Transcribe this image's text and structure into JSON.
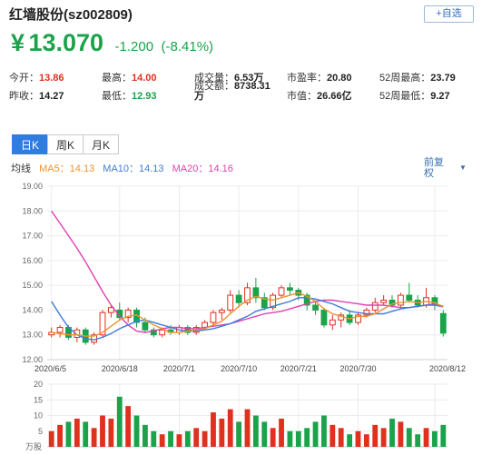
{
  "header": {
    "title": "红墙股份(sz002809)",
    "add_button": "+自选"
  },
  "price": {
    "currency": "¥",
    "value": "13.070",
    "change": "-1.200",
    "change_pct": "(-8.41%)"
  },
  "quote": {
    "open_label": "今开：",
    "open": "13.86",
    "prev_close_label": "昨收：",
    "prev_close": "14.27",
    "high_label": "最高：",
    "high": "14.00",
    "low_label": "最低：",
    "low": "12.93",
    "volume_label": "成交量：",
    "volume": "6.53万",
    "turnover_label": "成交额：",
    "turnover": "8738.31",
    "turnover_unit": "万",
    "pe_label": "市盈率：",
    "pe": "20.80",
    "mcap_label": "市值：",
    "mcap": "26.66亿",
    "w52_high_label": "52周最高：",
    "w52_high": "23.79",
    "w52_low_label": "52周最低：",
    "w52_low": "9.27"
  },
  "tabs": [
    "日K",
    "周K",
    "月K"
  ],
  "ma": {
    "label": "均线",
    "ma5": "MA5：14.13",
    "ma10": "MA10：14.13",
    "ma20": "MA20：14.16",
    "adjust": "前复权"
  },
  "colors": {
    "up": "#e0301e",
    "down": "#1aa34a",
    "ma5": "#f0922e",
    "ma10": "#3e7bd9",
    "ma20": "#e040b0"
  },
  "chart_data": {
    "type": "candlestick",
    "price_ylim": [
      12,
      19
    ],
    "price_ticks": [
      "19.00",
      "18.00",
      "17.00",
      "16.00",
      "15.00",
      "14.00",
      "13.00",
      "12.00"
    ],
    "x_ticks": [
      {
        "label": "2020/6/5",
        "index": 0
      },
      {
        "label": "2020/6/18",
        "index": 8
      },
      {
        "label": "2020/7/1",
        "index": 15
      },
      {
        "label": "2020/7/10",
        "index": 22
      },
      {
        "label": "2020/7/21",
        "index": 29
      },
      {
        "label": "2020/7/30",
        "index": 36
      },
      {
        "label": "2020/8/12",
        "index": 45
      }
    ],
    "volume_ylim": [
      0,
      20
    ],
    "volume_ticks": [
      "20",
      "15",
      "10",
      "5"
    ],
    "volume_unit": "万股",
    "candles": [
      {
        "o": 13.0,
        "c": 13.1,
        "h": 13.3,
        "l": 12.9,
        "v": 5
      },
      {
        "o": 13.1,
        "c": 13.3,
        "h": 13.4,
        "l": 12.9,
        "v": 7
      },
      {
        "o": 13.3,
        "c": 12.9,
        "h": 13.4,
        "l": 12.8,
        "v": 8
      },
      {
        "o": 12.9,
        "c": 13.2,
        "h": 13.3,
        "l": 12.7,
        "v": 9
      },
      {
        "o": 13.2,
        "c": 12.7,
        "h": 13.3,
        "l": 12.6,
        "v": 8
      },
      {
        "o": 12.7,
        "c": 13.0,
        "h": 13.1,
        "l": 12.6,
        "v": 6
      },
      {
        "o": 13.0,
        "c": 13.9,
        "h": 14.0,
        "l": 12.9,
        "v": 10
      },
      {
        "o": 13.9,
        "c": 14.1,
        "h": 14.2,
        "l": 13.7,
        "v": 9
      },
      {
        "o": 14.0,
        "c": 13.7,
        "h": 14.3,
        "l": 13.6,
        "v": 16
      },
      {
        "o": 13.7,
        "c": 14.0,
        "h": 14.1,
        "l": 13.5,
        "v": 13
      },
      {
        "o": 14.0,
        "c": 13.5,
        "h": 14.1,
        "l": 13.3,
        "v": 10
      },
      {
        "o": 13.5,
        "c": 13.2,
        "h": 13.7,
        "l": 13.1,
        "v": 7
      },
      {
        "o": 13.2,
        "c": 13.0,
        "h": 13.3,
        "l": 12.9,
        "v": 5
      },
      {
        "o": 13.0,
        "c": 13.2,
        "h": 13.3,
        "l": 12.9,
        "v": 4
      },
      {
        "o": 13.2,
        "c": 13.1,
        "h": 13.4,
        "l": 13.0,
        "v": 5
      },
      {
        "o": 13.1,
        "c": 13.3,
        "h": 13.4,
        "l": 13.0,
        "v": 4
      },
      {
        "o": 13.3,
        "c": 13.1,
        "h": 13.4,
        "l": 13.0,
        "v": 5
      },
      {
        "o": 13.1,
        "c": 13.3,
        "h": 13.4,
        "l": 13.0,
        "v": 6
      },
      {
        "o": 13.3,
        "c": 13.5,
        "h": 13.6,
        "l": 13.2,
        "v": 5
      },
      {
        "o": 13.5,
        "c": 13.9,
        "h": 14.0,
        "l": 13.4,
        "v": 11
      },
      {
        "o": 13.9,
        "c": 14.0,
        "h": 14.1,
        "l": 13.6,
        "v": 9
      },
      {
        "o": 14.0,
        "c": 14.6,
        "h": 14.8,
        "l": 13.9,
        "v": 12
      },
      {
        "o": 14.6,
        "c": 14.3,
        "h": 14.8,
        "l": 14.1,
        "v": 8
      },
      {
        "o": 14.3,
        "c": 14.9,
        "h": 15.1,
        "l": 14.2,
        "v": 12
      },
      {
        "o": 14.9,
        "c": 14.5,
        "h": 15.3,
        "l": 14.3,
        "v": 10
      },
      {
        "o": 14.5,
        "c": 14.1,
        "h": 14.7,
        "l": 14.0,
        "v": 8
      },
      {
        "o": 14.1,
        "c": 14.6,
        "h": 14.7,
        "l": 14.0,
        "v": 6
      },
      {
        "o": 14.6,
        "c": 14.9,
        "h": 15.0,
        "l": 14.5,
        "v": 9
      },
      {
        "o": 14.9,
        "c": 14.8,
        "h": 15.1,
        "l": 14.6,
        "v": 5
      },
      {
        "o": 14.8,
        "c": 14.6,
        "h": 14.9,
        "l": 14.4,
        "v": 5
      },
      {
        "o": 14.6,
        "c": 14.2,
        "h": 14.7,
        "l": 14.0,
        "v": 6
      },
      {
        "o": 14.2,
        "c": 14.0,
        "h": 14.4,
        "l": 13.8,
        "v": 8
      },
      {
        "o": 14.0,
        "c": 13.4,
        "h": 14.1,
        "l": 13.3,
        "v": 10
      },
      {
        "o": 13.4,
        "c": 13.6,
        "h": 13.8,
        "l": 13.2,
        "v": 7
      },
      {
        "o": 13.6,
        "c": 13.8,
        "h": 13.9,
        "l": 13.3,
        "v": 6
      },
      {
        "o": 13.8,
        "c": 13.5,
        "h": 14.0,
        "l": 13.4,
        "v": 4
      },
      {
        "o": 13.5,
        "c": 13.8,
        "h": 13.9,
        "l": 13.4,
        "v": 5
      },
      {
        "o": 13.8,
        "c": 14.0,
        "h": 14.1,
        "l": 13.7,
        "v": 4
      },
      {
        "o": 14.0,
        "c": 14.3,
        "h": 14.5,
        "l": 13.9,
        "v": 7
      },
      {
        "o": 14.3,
        "c": 14.4,
        "h": 14.6,
        "l": 14.2,
        "v": 6
      },
      {
        "o": 14.4,
        "c": 14.2,
        "h": 14.6,
        "l": 14.1,
        "v": 9
      },
      {
        "o": 14.2,
        "c": 14.6,
        "h": 14.7,
        "l": 14.1,
        "v": 8
      },
      {
        "o": 14.6,
        "c": 14.4,
        "h": 15.1,
        "l": 14.3,
        "v": 6
      },
      {
        "o": 14.4,
        "c": 14.2,
        "h": 14.6,
        "l": 14.1,
        "v": 4
      },
      {
        "o": 14.2,
        "c": 14.5,
        "h": 14.9,
        "l": 14.1,
        "v": 6
      },
      {
        "o": 14.5,
        "c": 14.2,
        "h": 14.6,
        "l": 14.0,
        "v": 5
      },
      {
        "o": 13.86,
        "c": 13.07,
        "h": 14.0,
        "l": 12.93,
        "v": 7
      }
    ],
    "ma5_line": [
      13.1,
      13.05,
      13.0,
      13.0,
      12.95,
      12.95,
      13.1,
      13.35,
      13.6,
      13.75,
      13.8,
      13.6,
      13.4,
      13.25,
      13.1,
      13.1,
      13.15,
      13.2,
      13.25,
      13.4,
      13.55,
      13.85,
      14.15,
      14.4,
      14.55,
      14.45,
      14.4,
      14.5,
      14.6,
      14.7,
      14.55,
      14.35,
      14.05,
      13.85,
      13.75,
      13.65,
      13.75,
      13.75,
      13.85,
      14.05,
      14.25,
      14.3,
      14.35,
      14.3,
      14.35,
      14.3,
      14.13
    ],
    "ma10_line": [
      14.35,
      13.8,
      13.3,
      13.0,
      12.85,
      12.8,
      12.9,
      13.05,
      13.25,
      13.4,
      13.55,
      13.6,
      13.5,
      13.4,
      13.3,
      13.2,
      13.15,
      13.15,
      13.2,
      13.25,
      13.35,
      13.45,
      13.6,
      13.75,
      13.95,
      14.05,
      14.15,
      14.25,
      14.35,
      14.5,
      14.5,
      14.45,
      14.35,
      14.25,
      14.1,
      13.95,
      13.9,
      13.85,
      13.85,
      13.85,
      13.95,
      14.05,
      14.1,
      14.15,
      14.2,
      14.2,
      14.13
    ],
    "ma20_line": [
      18.0,
      17.5,
      17.0,
      16.5,
      15.95,
      15.35,
      14.75,
      14.2,
      13.75,
      13.4,
      13.15,
      13.1,
      13.15,
      13.25,
      13.3,
      13.3,
      13.25,
      13.25,
      13.3,
      13.35,
      13.4,
      13.45,
      13.55,
      13.65,
      13.75,
      13.85,
      13.9,
      13.95,
      14.05,
      14.15,
      14.25,
      14.35,
      14.4,
      14.4,
      14.35,
      14.3,
      14.25,
      14.2,
      14.2,
      14.2,
      14.15,
      14.1,
      14.1,
      14.15,
      14.2,
      14.25,
      14.16
    ]
  }
}
